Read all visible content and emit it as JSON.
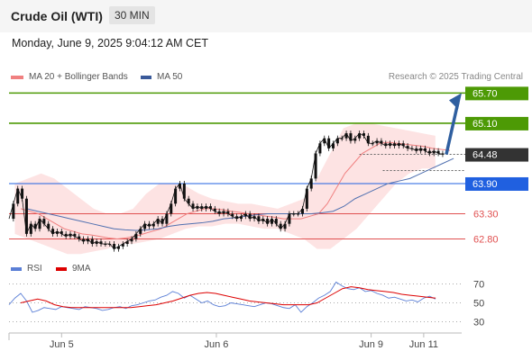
{
  "header": {
    "title": "Crude Oil (WTI)",
    "timeframe": "30 MIN"
  },
  "datetime": "Monday, June 9, 2025 9:04:12 AM CET",
  "legend": {
    "ma20": "MA 20 + Bollinger Bands",
    "ma50": "MA 50",
    "rsi": "RSI",
    "ma9": "9MA",
    "credit": "Research © 2025 Trading Central"
  },
  "colors": {
    "resistance": "#4d9a05",
    "support_blue": "#2060e0",
    "support_red": "#e05050",
    "current": "#333333",
    "price": "#111111",
    "ma20": "#f08080",
    "band_fill": "#fde3e3",
    "ma50": "#5070b0",
    "arrow": "#2f5fa0",
    "rsi": "#5b7fd6",
    "rsi_ma": "#dd0000"
  },
  "chart_data": [
    {
      "type": "line",
      "name": "price-panel",
      "ylim": [
        62.45,
        65.85
      ],
      "x_ticks": [
        {
          "x": 18,
          "label": "Jun 5"
        },
        {
          "x": 71,
          "label": "Jun 6"
        },
        {
          "x": 124,
          "label": "Jun 9"
        },
        {
          "x": 142,
          "label": "Jun 11"
        }
      ],
      "xlim": [
        0,
        155
      ],
      "levels": [
        {
          "value": 65.7,
          "label": "65.70",
          "kind": "resistance"
        },
        {
          "value": 65.1,
          "label": "65.10",
          "kind": "resistance"
        },
        {
          "value": 64.48,
          "label": "64.48",
          "kind": "current"
        },
        {
          "value": 63.9,
          "label": "63.90",
          "kind": "support_blue"
        },
        {
          "value": 63.3,
          "label": "63.30",
          "kind": "support_red"
        },
        {
          "value": 62.8,
          "label": "62.80",
          "kind": "support_red"
        }
      ],
      "series": [
        {
          "name": "price",
          "values": [
            63.2,
            63.5,
            63.8,
            63.6,
            62.9,
            63.1,
            63.0,
            63.2,
            63.1,
            63.0,
            62.9,
            62.95,
            62.9,
            62.85,
            62.9,
            62.85,
            62.8,
            62.75,
            62.8,
            62.7,
            62.75,
            62.7,
            62.7,
            62.7,
            62.6,
            62.65,
            62.7,
            62.75,
            62.8,
            62.9,
            63.0,
            63.1,
            63.05,
            63.1,
            63.2,
            63.1,
            63.3,
            63.5,
            63.8,
            63.9,
            63.6,
            63.5,
            63.4,
            63.45,
            63.4,
            63.45,
            63.4,
            63.35,
            63.3,
            63.35,
            63.3,
            63.25,
            63.2,
            63.25,
            63.3,
            63.2,
            63.25,
            63.15,
            63.2,
            63.1,
            63.2,
            63.1,
            63.0,
            63.1,
            63.3,
            63.3,
            63.3,
            63.4,
            63.8,
            64.0,
            64.5,
            64.7,
            64.8,
            64.6,
            64.7,
            64.8,
            64.8,
            64.9,
            64.75,
            64.8,
            64.9,
            64.85,
            64.7,
            64.7,
            64.75,
            64.7,
            64.65,
            64.7,
            64.65,
            64.7,
            64.65,
            64.6,
            64.6,
            64.55,
            64.6,
            64.55,
            64.5,
            64.55,
            64.5,
            64.48
          ],
          "x_start": 0,
          "x_step": 1.5
        },
        {
          "name": "ma20",
          "values": [
            63.4,
            63.35,
            63.3,
            63.2,
            63.1,
            63.0,
            62.95,
            62.9,
            62.88,
            62.85,
            62.82,
            62.8,
            62.82,
            62.85,
            62.9,
            62.95,
            63.0,
            63.1,
            63.2,
            63.3,
            63.35,
            63.4,
            63.4,
            63.38,
            63.35,
            63.33,
            63.3,
            63.28,
            63.25,
            63.23,
            63.2,
            63.2,
            63.2,
            63.25,
            63.3,
            63.5,
            63.8,
            64.1,
            64.3,
            64.5,
            64.6,
            64.7,
            64.72,
            64.7,
            64.68,
            64.66,
            64.64,
            64.6,
            64.58,
            64.56
          ],
          "x_start": 4,
          "x_step": 3
        },
        {
          "name": "ma50",
          "values": [
            63.4,
            63.35,
            63.3,
            63.25,
            63.2,
            63.15,
            63.1,
            63.05,
            63.0,
            62.98,
            62.97,
            62.98,
            63.0,
            63.05,
            63.08,
            63.1,
            63.12,
            63.15,
            63.2,
            63.22,
            63.25,
            63.28,
            63.3,
            63.3,
            63.3,
            63.3,
            63.3,
            63.32,
            63.35,
            63.45,
            63.6,
            63.7,
            63.8,
            63.9,
            63.95,
            64.0,
            64.1,
            64.2,
            64.3,
            64.4
          ],
          "x_start": 6,
          "x_step": 3.75
        },
        {
          "name": "bb-upper",
          "values": [
            63.9,
            64.0,
            64.1,
            64.0,
            63.8,
            63.6,
            63.4,
            63.3,
            63.3,
            63.4,
            63.7,
            63.9,
            63.9,
            63.85,
            63.7,
            63.6,
            63.55,
            63.5,
            63.5,
            63.45,
            63.4,
            63.5,
            63.6,
            64.0,
            64.5,
            65.0,
            65.1,
            65.1,
            65.05,
            65.0,
            64.95,
            64.9,
            64.85
          ],
          "x_start": 2,
          "x_step": 4.5
        },
        {
          "name": "bb-lower",
          "values": [
            62.9,
            62.8,
            62.7,
            62.6,
            62.5,
            62.5,
            62.55,
            62.6,
            62.7,
            62.7,
            62.75,
            62.8,
            62.9,
            63.0,
            63.05,
            63.05,
            63.1,
            63.1,
            63.05,
            63.0,
            63.0,
            62.9,
            62.8,
            62.6,
            62.6,
            62.8,
            63.0,
            63.3,
            63.6,
            63.9,
            64.1,
            64.2,
            64.2
          ],
          "x_start": 2,
          "x_step": 4.5
        }
      ]
    },
    {
      "type": "line",
      "name": "rsi-panel",
      "ylim": [
        20,
        80
      ],
      "y_ticks": [
        70,
        50,
        30
      ],
      "xlim": [
        0,
        155
      ],
      "series": [
        {
          "name": "RSI",
          "values": [
            48,
            55,
            60,
            52,
            40,
            42,
            45,
            44,
            43,
            46,
            45,
            44,
            43,
            46,
            45,
            44,
            42,
            43,
            45,
            46,
            44,
            47,
            48,
            50,
            52,
            53,
            56,
            58,
            62,
            60,
            55,
            58,
            54,
            50,
            52,
            48,
            46,
            47,
            50,
            49,
            48,
            47,
            46,
            48,
            50,
            49,
            47,
            45,
            44,
            48,
            40,
            46,
            50,
            55,
            58,
            62,
            72,
            68,
            65,
            64,
            66,
            62,
            63,
            60,
            58,
            55,
            56,
            54,
            52,
            53,
            51,
            55,
            57,
            54
          ],
          "x_start": 0,
          "x_step": 2
        },
        {
          "name": "9MA",
          "values": [
            50,
            52,
            54,
            52,
            48,
            46,
            45,
            45,
            45,
            45,
            45,
            45,
            45,
            45,
            46,
            47,
            48,
            50,
            52,
            55,
            58,
            60,
            61,
            60,
            58,
            56,
            54,
            52,
            51,
            50,
            49,
            48,
            48,
            48,
            48,
            50,
            55,
            60,
            65,
            67,
            66,
            64,
            63,
            62,
            61,
            59,
            58,
            57,
            56,
            55
          ],
          "x_start": 4,
          "x_step": 2.9
        }
      ]
    }
  ]
}
